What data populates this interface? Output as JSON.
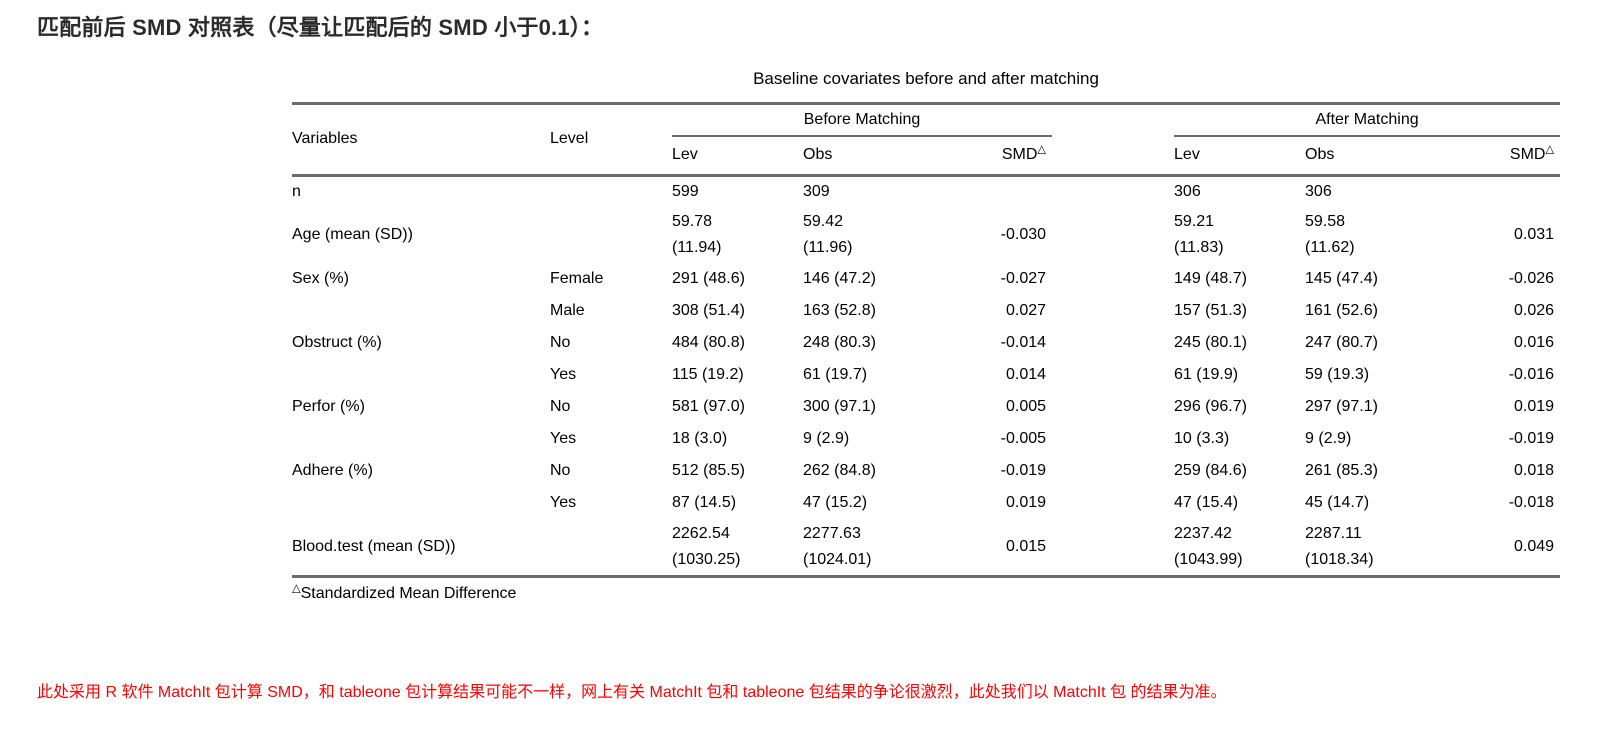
{
  "page": {
    "title": "匹配前后 SMD 对照表（尽量让匹配后的 SMD 小于0.1）：",
    "note": "此处采用 R 软件 MatchIt 包计算 SMD，和 tableone 包计算结果可能不一样，网上有关 MatchIt 包和 tableone 包结果的争论很激烈，此处我们以 MatchIt 包 的结果为准。"
  },
  "colors": {
    "title_text": "#2b2b2b",
    "rule": "#6b6b6b",
    "note_text": "#ff0000",
    "body_text": "#000000"
  },
  "table": {
    "caption": "Baseline covariates before and after matching",
    "headers": {
      "variables": "Variables",
      "level": "Level",
      "before": {
        "group": "Before Matching",
        "lev": "Lev",
        "obs": "Obs",
        "smd": "SMD",
        "smd_marker": "△"
      },
      "after": {
        "group": "After Matching",
        "lev": "Lev",
        "obs": "Obs",
        "smd": "SMD",
        "smd_marker": "△"
      }
    },
    "rows": [
      {
        "variable": "n",
        "level": "",
        "b_lev": "599",
        "b_obs": "309",
        "b_smd": "",
        "a_lev": "306",
        "a_obs": "306",
        "a_smd": ""
      },
      {
        "variable": "Age (mean (SD))",
        "level": "",
        "b_lev": "59.78\n(11.94)",
        "b_obs": "59.42\n(11.96)",
        "b_smd": "-0.030",
        "a_lev": "59.21\n(11.83)",
        "a_obs": "59.58\n(11.62)",
        "a_smd": "0.031"
      },
      {
        "variable": "Sex (%)",
        "level": "Female",
        "b_lev": "291 (48.6)",
        "b_obs": "146 (47.2)",
        "b_smd": "-0.027",
        "a_lev": "149 (48.7)",
        "a_obs": "145 (47.4)",
        "a_smd": "-0.026"
      },
      {
        "variable": "",
        "level": "Male",
        "b_lev": "308 (51.4)",
        "b_obs": "163 (52.8)",
        "b_smd": "0.027",
        "a_lev": "157 (51.3)",
        "a_obs": "161 (52.6)",
        "a_smd": "0.026"
      },
      {
        "variable": "Obstruct (%)",
        "level": "No",
        "b_lev": "484 (80.8)",
        "b_obs": "248 (80.3)",
        "b_smd": "-0.014",
        "a_lev": "245 (80.1)",
        "a_obs": "247 (80.7)",
        "a_smd": "0.016"
      },
      {
        "variable": "",
        "level": "Yes",
        "b_lev": "115 (19.2)",
        "b_obs": "61 (19.7)",
        "b_smd": "0.014",
        "a_lev": "61 (19.9)",
        "a_obs": "59 (19.3)",
        "a_smd": "-0.016"
      },
      {
        "variable": "Perfor (%)",
        "level": "No",
        "b_lev": "581 (97.0)",
        "b_obs": "300 (97.1)",
        "b_smd": "0.005",
        "a_lev": "296 (96.7)",
        "a_obs": "297 (97.1)",
        "a_smd": "0.019"
      },
      {
        "variable": "",
        "level": "Yes",
        "b_lev": "18 (3.0)",
        "b_obs": "9 (2.9)",
        "b_smd": "-0.005",
        "a_lev": "10 (3.3)",
        "a_obs": "9 (2.9)",
        "a_smd": "-0.019"
      },
      {
        "variable": "Adhere (%)",
        "level": "No",
        "b_lev": "512 (85.5)",
        "b_obs": "262 (84.8)",
        "b_smd": "-0.019",
        "a_lev": "259 (84.6)",
        "a_obs": "261 (85.3)",
        "a_smd": "0.018"
      },
      {
        "variable": "",
        "level": "Yes",
        "b_lev": "87 (14.5)",
        "b_obs": "47 (15.2)",
        "b_smd": "0.019",
        "a_lev": "47 (15.4)",
        "a_obs": "45 (14.7)",
        "a_smd": "-0.018"
      },
      {
        "variable": "Blood.test (mean (SD))",
        "level": "",
        "b_lev": "2262.54\n(1030.25)",
        "b_obs": "2277.63\n(1024.01)",
        "b_smd": "0.015",
        "a_lev": "2237.42\n(1043.99)",
        "a_obs": "2287.11\n(1018.34)",
        "a_smd": "0.049"
      }
    ],
    "footnote": {
      "marker": "△",
      "text": "Standardized Mean Difference"
    }
  }
}
